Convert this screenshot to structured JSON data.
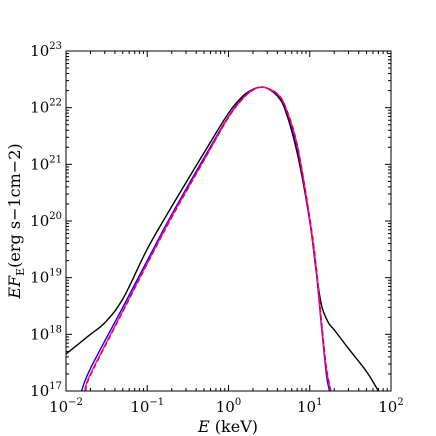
{
  "chart_data": {
    "type": "line",
    "title": "",
    "xlabel": {
      "var": "E",
      "unit": "(keV)"
    },
    "ylabel": {
      "var": "EF",
      "sub": "E",
      "unit": "(erg s−1cm−2)"
    },
    "xscale": "log",
    "yscale": "log",
    "xlim": [
      0.01,
      100
    ],
    "ylim": [
      1e+17,
      1e+23
    ],
    "grid": false,
    "legend": "none",
    "x_ticks": [
      {
        "base": "10",
        "exp": "−2",
        "value": 0.01
      },
      {
        "base": "10",
        "exp": "−1",
        "value": 0.1
      },
      {
        "base": "10",
        "exp": "0",
        "value": 1
      },
      {
        "base": "10",
        "exp": "1",
        "value": 10
      },
      {
        "base": "10",
        "exp": "2",
        "value": 100
      }
    ],
    "y_ticks": [
      {
        "base": "10",
        "exp": "17",
        "value": 1e+17
      },
      {
        "base": "10",
        "exp": "18",
        "value": 1e+18
      },
      {
        "base": "10",
        "exp": "19",
        "value": 1e+19
      },
      {
        "base": "10",
        "exp": "20",
        "value": 1e+20
      },
      {
        "base": "10",
        "exp": "21",
        "value": 1e+21
      },
      {
        "base": "10",
        "exp": "22",
        "value": 1e+22
      },
      {
        "base": "10",
        "exp": "23",
        "value": 1e+23
      }
    ],
    "series": [
      {
        "color": "#000000",
        "dash": "solid",
        "points": [
          [
            0.01,
            4.5e+17
          ],
          [
            0.02,
            1e+18
          ],
          [
            0.03,
            1.6e+18
          ],
          [
            0.05,
            4.2e+18
          ],
          [
            0.1,
            3.2e+19
          ],
          [
            0.2,
            1.8e+20
          ],
          [
            0.5,
            1.6e+21
          ],
          [
            1.0,
            8e+21
          ],
          [
            1.5,
            1.6e+22
          ],
          [
            2.0,
            2.1e+22
          ],
          [
            2.5,
            2.3e+22
          ],
          [
            3.0,
            2.2e+22
          ],
          [
            4.0,
            1.6e+22
          ],
          [
            5.0,
            9e+21
          ],
          [
            7.0,
            1.6e+21
          ],
          [
            10.0,
            1e+20
          ],
          [
            12.0,
            1.3e+19
          ],
          [
            14.0,
            3.2e+18
          ],
          [
            17.0,
            1.6e+18
          ],
          [
            20.0,
            1.2e+18
          ],
          [
            30.0,
            5.6e+17
          ],
          [
            50.0,
            2.2e+17
          ],
          [
            70.0,
            1e+17
          ]
        ]
      },
      {
        "color": "#0000ff",
        "dash": "solid",
        "points": [
          [
            0.0155,
            1e+17
          ],
          [
            0.02,
            2.5e+17
          ],
          [
            0.05,
            3e+18
          ],
          [
            0.1,
            2e+19
          ],
          [
            0.2,
            1.3e+20
          ],
          [
            0.5,
            1.3e+21
          ],
          [
            1.0,
            7e+21
          ],
          [
            1.5,
            1.5e+22
          ],
          [
            2.0,
            2.1e+22
          ],
          [
            2.5,
            2.3e+22
          ],
          [
            3.0,
            2.2e+22
          ],
          [
            4.0,
            1.7e+22
          ],
          [
            5.0,
            1e+22
          ],
          [
            7.0,
            2e+21
          ],
          [
            10.0,
            1e+20
          ],
          [
            12.0,
            1.3e+19
          ],
          [
            14.0,
            1.3e+18
          ],
          [
            16.0,
            2e+17
          ],
          [
            17.5,
            1e+17
          ]
        ]
      },
      {
        "color": "#ff00ff",
        "dash": "solid",
        "points": [
          [
            0.017,
            1e+17
          ],
          [
            0.02,
            2e+17
          ],
          [
            0.05,
            2.6e+18
          ],
          [
            0.1,
            1.8e+19
          ],
          [
            0.2,
            1.2e+20
          ],
          [
            0.5,
            1.2e+21
          ],
          [
            1.0,
            6.8e+21
          ],
          [
            1.5,
            1.45e+22
          ],
          [
            2.0,
            2.05e+22
          ],
          [
            2.5,
            2.3e+22
          ],
          [
            3.0,
            2.2e+22
          ],
          [
            4.0,
            1.75e+22
          ],
          [
            5.0,
            1.05e+22
          ],
          [
            7.0,
            2.2e+21
          ],
          [
            10.0,
            1.1e+20
          ],
          [
            12.0,
            1.5e+19
          ],
          [
            14.0,
            1.5e+18
          ],
          [
            16.0,
            2.5e+17
          ],
          [
            18.0,
            1e+17
          ]
        ]
      },
      {
        "color": "#ff0000",
        "dash": "dashed",
        "points": [
          [
            0.0175,
            1e+17
          ],
          [
            0.02,
            1.9e+17
          ],
          [
            0.05,
            2.5e+18
          ],
          [
            0.1,
            1.75e+19
          ],
          [
            0.2,
            1.15e+20
          ],
          [
            0.5,
            1.18e+21
          ],
          [
            1.0,
            6.7e+21
          ],
          [
            1.5,
            1.44e+22
          ],
          [
            2.0,
            2.05e+22
          ],
          [
            2.5,
            2.3e+22
          ],
          [
            3.0,
            2.2e+22
          ],
          [
            4.0,
            1.75e+22
          ],
          [
            5.0,
            1.06e+22
          ],
          [
            7.0,
            2.25e+21
          ],
          [
            10.0,
            1.15e+20
          ],
          [
            12.0,
            1.6e+19
          ],
          [
            14.0,
            1.6e+18
          ],
          [
            16.0,
            2.7e+17
          ],
          [
            18.2,
            1e+17
          ]
        ]
      }
    ]
  }
}
